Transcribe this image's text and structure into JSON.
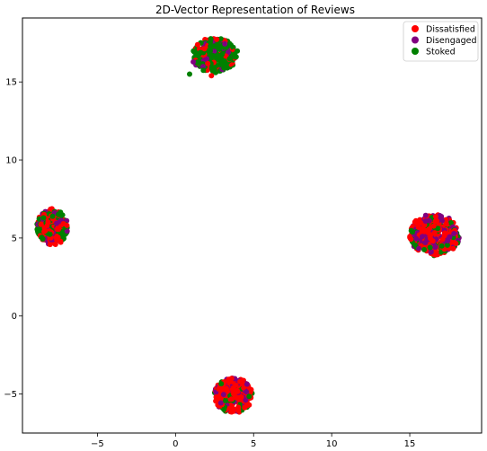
{
  "chart_data": {
    "type": "scatter",
    "title": "2D-Vector Representation of Reviews",
    "xlabel": "",
    "ylabel": "",
    "xlim": [
      -9.8,
      19.6
    ],
    "ylim": [
      -7.5,
      19.1
    ],
    "xticks": [
      -5,
      0,
      5,
      10,
      15
    ],
    "yticks": [
      -5,
      0,
      5,
      10,
      15
    ],
    "grid": false,
    "legend_position": "top-right",
    "series": [
      {
        "name": "Dissatisfied",
        "color": "#ff0000"
      },
      {
        "name": "Disengaged",
        "color": "#800080"
      },
      {
        "name": "Stoked",
        "color": "#008000"
      }
    ],
    "clusters": [
      {
        "center": [
          2.5,
          16.7
        ],
        "radius": [
          1.4,
          1.1
        ],
        "mix": [
          0.15,
          0.15,
          0.7
        ]
      },
      {
        "center": [
          -7.9,
          5.7
        ],
        "radius": [
          1.0,
          1.1
        ],
        "mix": [
          0.35,
          0.2,
          0.45
        ]
      },
      {
        "center": [
          16.6,
          5.2
        ],
        "radius": [
          1.6,
          1.3
        ],
        "mix": [
          0.55,
          0.25,
          0.2
        ]
      },
      {
        "center": [
          3.7,
          -5.1
        ],
        "radius": [
          1.2,
          1.1
        ],
        "mix": [
          0.6,
          0.25,
          0.15
        ]
      }
    ]
  }
}
